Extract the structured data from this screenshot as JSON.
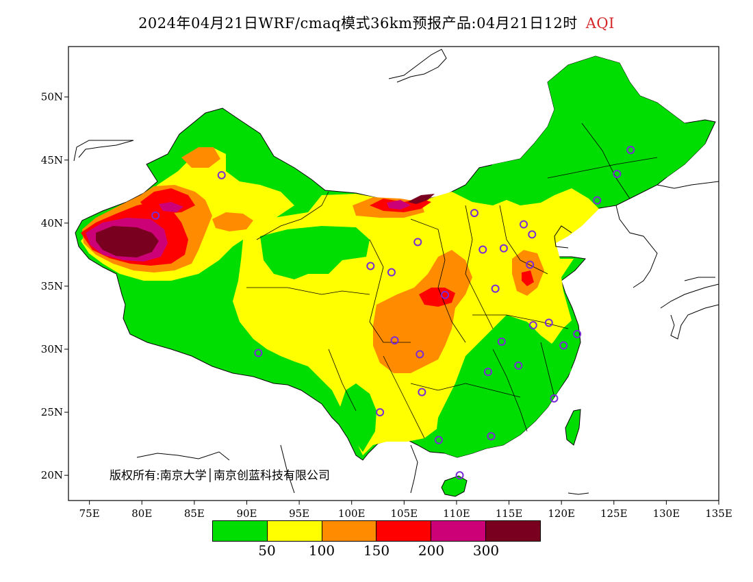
{
  "header": {
    "title": "2024年04月21日WRF/cmaq模式36km预报产品:04月21日12时",
    "variable": "AQI"
  },
  "axes": {
    "lat_labels": [
      "50N",
      "45N",
      "40N",
      "35N",
      "30N",
      "25N",
      "20N"
    ],
    "lon_labels": [
      "75E",
      "80E",
      "85E",
      "90E",
      "95E",
      "100E",
      "105E",
      "110E",
      "115E",
      "120E",
      "125E",
      "130E",
      "135E"
    ],
    "lon_range": [
      73,
      135
    ],
    "lat_range": [
      18,
      54
    ]
  },
  "legend": {
    "colors": [
      "#00dd00",
      "#ffff00",
      "#ff8c00",
      "#ff0000",
      "#cc0077",
      "#7a0020"
    ],
    "ticks": [
      "50",
      "100",
      "150",
      "200",
      "300"
    ]
  },
  "copyright": "版权所有:南京大学│南京创蓝科技有限公司",
  "stations": [
    {
      "lon": 87.6,
      "lat": 43.8
    },
    {
      "lon": 91.1,
      "lat": 29.7
    },
    {
      "lon": 101.8,
      "lat": 36.6
    },
    {
      "lon": 103.8,
      "lat": 36.1
    },
    {
      "lon": 106.3,
      "lat": 38.5
    },
    {
      "lon": 111.7,
      "lat": 40.8
    },
    {
      "lon": 112.5,
      "lat": 37.9
    },
    {
      "lon": 114.5,
      "lat": 38.0
    },
    {
      "lon": 116.4,
      "lat": 39.9
    },
    {
      "lon": 117.2,
      "lat": 39.1
    },
    {
      "lon": 123.4,
      "lat": 41.8
    },
    {
      "lon": 125.3,
      "lat": 43.9
    },
    {
      "lon": 126.6,
      "lat": 45.8
    },
    {
      "lon": 117.0,
      "lat": 36.7
    },
    {
      "lon": 113.7,
      "lat": 34.8
    },
    {
      "lon": 108.9,
      "lat": 34.3
    },
    {
      "lon": 104.1,
      "lat": 30.7
    },
    {
      "lon": 106.5,
      "lat": 29.6
    },
    {
      "lon": 114.3,
      "lat": 30.6
    },
    {
      "lon": 117.3,
      "lat": 31.9
    },
    {
      "lon": 118.8,
      "lat": 32.1
    },
    {
      "lon": 121.5,
      "lat": 31.2
    },
    {
      "lon": 120.2,
      "lat": 30.3
    },
    {
      "lon": 115.9,
      "lat": 28.7
    },
    {
      "lon": 113.0,
      "lat": 28.2
    },
    {
      "lon": 106.7,
      "lat": 26.6
    },
    {
      "lon": 102.7,
      "lat": 25.0
    },
    {
      "lon": 108.3,
      "lat": 22.8
    },
    {
      "lon": 113.3,
      "lat": 23.1
    },
    {
      "lon": 119.3,
      "lat": 26.1
    },
    {
      "lon": 110.3,
      "lat": 20.0
    },
    {
      "lon": 81.3,
      "lat": 40.6
    }
  ]
}
